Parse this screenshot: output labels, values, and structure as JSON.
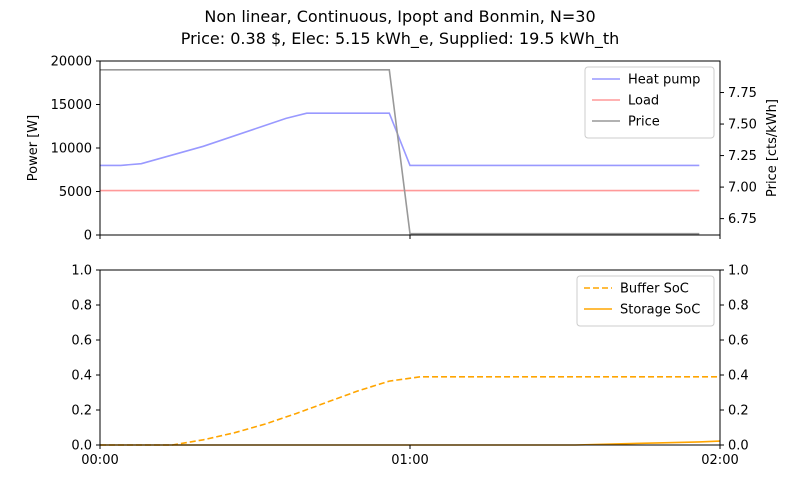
{
  "title": "Non linear, Continuous, Ipopt and Bonmin, N=30",
  "subtitle": "Price: 0.38 $, Elec: 5.15 kWh_e, Supplied: 19.5 kWh_th",
  "chart_data": [
    {
      "type": "line",
      "ylabel": "Power [W]",
      "y2label": "Price [cts/kWh]",
      "ylim": [
        0,
        20000
      ],
      "y2lim": [
        6.62,
        8.0
      ],
      "yticks": [
        "0",
        "5000",
        "10000",
        "15000",
        "20000"
      ],
      "y2ticks": [
        "6.75",
        "7.00",
        "7.25",
        "7.50",
        "7.75"
      ],
      "xlim": [
        0,
        120
      ],
      "legend_position": "top-right",
      "series": [
        {
          "name": "Heat pump",
          "axis": "left",
          "color": "#9999ff",
          "style": "solid",
          "x": [
            0,
            4,
            8,
            20,
            36,
            40,
            44,
            48,
            52,
            56,
            60,
            64,
            68,
            72,
            76,
            80,
            84,
            88,
            92,
            96,
            100,
            104,
            108,
            112,
            116
          ],
          "y": [
            8000,
            8000,
            8200,
            10200,
            13400,
            14000,
            14000,
            14000,
            14000,
            14000,
            8000,
            8000,
            8000,
            8000,
            8000,
            8000,
            8000,
            8000,
            8000,
            8000,
            8000,
            8000,
            8000,
            8000,
            8000
          ]
        },
        {
          "name": "Load",
          "axis": "left",
          "color": "#ff9999",
          "style": "solid",
          "x": [
            0,
            116
          ],
          "y": [
            5100,
            5100
          ]
        },
        {
          "name": "Price",
          "axis": "right",
          "color": "#999999",
          "style": "solid",
          "x": [
            0,
            56,
            60,
            116
          ],
          "y": [
            7.93,
            7.93,
            6.63,
            6.63
          ]
        }
      ]
    },
    {
      "type": "line",
      "ylim": [
        0,
        1
      ],
      "y2lim": [
        0,
        1
      ],
      "yticks": [
        "0.0",
        "0.2",
        "0.4",
        "0.6",
        "0.8",
        "1.0"
      ],
      "y2ticks": [
        "0.0",
        "0.2",
        "0.4",
        "0.6",
        "0.8",
        "1.0"
      ],
      "xlim": [
        0,
        120
      ],
      "xticks": [
        "00:00",
        "01:00",
        "02:00"
      ],
      "legend_position": "top-right",
      "series": [
        {
          "name": "Buffer SoC",
          "color": "#ffa500",
          "style": "dashed",
          "x": [
            0,
            12,
            14,
            20,
            26,
            32,
            38,
            44,
            50,
            56,
            62,
            64,
            120
          ],
          "y": [
            0,
            0,
            0.0,
            0.03,
            0.07,
            0.12,
            0.18,
            0.245,
            0.31,
            0.365,
            0.39,
            0.39,
            0.39
          ]
        },
        {
          "name": "Storage SoC",
          "color": "#ffa500",
          "style": "solid",
          "x": [
            0,
            92,
            100,
            108,
            116,
            120
          ],
          "y": [
            0,
            0,
            0.006,
            0.012,
            0.018,
            0.022
          ]
        }
      ]
    }
  ]
}
